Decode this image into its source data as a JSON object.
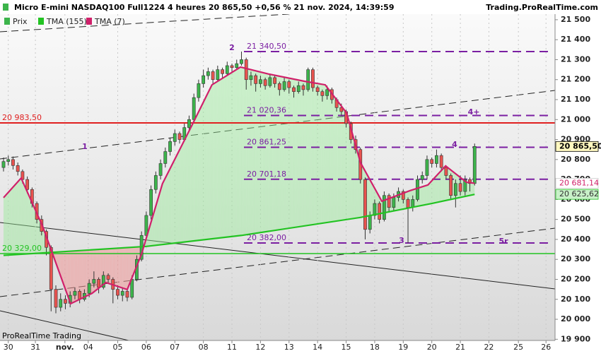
{
  "chart_data": {
    "type": "candlestick",
    "title": "Micro E-mini NASDAQ100 Full1224 4 heures 20 865,50 +0,56 % 21 nov. 2024, 14:39:59",
    "source": "Trading.ProRealTime.com",
    "footer": "ProRealTime Trading",
    "xlim": [
      -0.74,
      115.9
    ],
    "ylim": [
      19894,
      21528
    ],
    "xticks": [
      {
        "value": 1,
        "label": "30"
      },
      {
        "value": 6.7,
        "label": "31"
      },
      {
        "value": 12.9,
        "label": "nov."
      },
      {
        "value": 17.8,
        "label": "04"
      },
      {
        "value": 24,
        "label": "05"
      },
      {
        "value": 30,
        "label": "06"
      },
      {
        "value": 36,
        "label": "07"
      },
      {
        "value": 42,
        "label": "08"
      },
      {
        "value": 48,
        "label": "11"
      },
      {
        "value": 54,
        "label": "12"
      },
      {
        "value": 60,
        "label": "13"
      },
      {
        "value": 66,
        "label": "14"
      },
      {
        "value": 72,
        "label": "15"
      },
      {
        "value": 78,
        "label": "18"
      },
      {
        "value": 84,
        "label": "19"
      },
      {
        "value": 90,
        "label": "20"
      },
      {
        "value": 96,
        "label": "21"
      },
      {
        "value": 102,
        "label": "22"
      },
      {
        "value": 108.2,
        "label": "25"
      },
      {
        "value": 114,
        "label": "26"
      }
    ],
    "yticks": [
      {
        "value": 21500,
        "label": "21 500"
      },
      {
        "value": 21400,
        "label": "21 400"
      },
      {
        "value": 21300,
        "label": "21 300"
      },
      {
        "value": 21200,
        "label": "21 200"
      },
      {
        "value": 21100,
        "label": "21 100"
      },
      {
        "value": 21000,
        "label": "21 000"
      },
      {
        "value": 20900,
        "label": "20 900"
      },
      {
        "value": 20800,
        "label": "20 800"
      },
      {
        "value": 20700,
        "label": "20 700"
      },
      {
        "value": 20600,
        "label": "20 600"
      },
      {
        "value": 20500,
        "label": "20 500"
      },
      {
        "value": 20400,
        "label": "20 400"
      },
      {
        "value": 20300,
        "label": "20 300"
      },
      {
        "value": 20200,
        "label": "20 200"
      },
      {
        "value": 20100,
        "label": "20 100"
      },
      {
        "value": 20000,
        "label": "20 000"
      },
      {
        "value": 19900,
        "label": "19 900"
      }
    ],
    "series": [
      {
        "name": "Prix",
        "up_color": "#3cb44b",
        "down_color": "#e8534f",
        "open": [
          20760,
          20790,
          20800,
          20770,
          20740,
          20700,
          20650,
          20580,
          20500,
          20440,
          20360,
          20150,
          20060,
          20100,
          20080,
          20120,
          20140,
          20100,
          20130,
          20180,
          20200,
          20160,
          20220,
          20200,
          20150,
          20120,
          20140,
          20110,
          20200,
          20300,
          20420,
          20520,
          20650,
          20720,
          20780,
          20840,
          20890,
          20930,
          20900,
          20960,
          21000,
          21110,
          21180,
          21220,
          21240,
          21200,
          21250,
          21230,
          21270,
          21260,
          21280,
          21300,
          21200,
          21220,
          21180,
          21200,
          21170,
          21210,
          21180,
          21150,
          21190,
          21160,
          21140,
          21170,
          21150,
          21250,
          21160,
          21140,
          21120,
          21150,
          21100,
          21060,
          21040,
          20980,
          20900,
          20850,
          20700,
          20450,
          20520,
          20580,
          20500,
          20620,
          20560,
          20610,
          20640,
          20600,
          20560,
          20600,
          20700,
          20720,
          20800,
          20780,
          20820,
          20760,
          20720,
          20620,
          20680,
          20640,
          20700,
          20680
        ],
        "high": [
          20810,
          20820,
          20815,
          20785,
          20750,
          20715,
          20660,
          20590,
          20520,
          20450,
          20370,
          20170,
          20130,
          20120,
          20140,
          20160,
          20150,
          20150,
          20200,
          20240,
          20210,
          20240,
          20230,
          20210,
          20170,
          20160,
          20150,
          20220,
          20320,
          20440,
          20540,
          20670,
          20740,
          20800,
          20860,
          20910,
          20950,
          20940,
          20980,
          21020,
          21130,
          21200,
          21250,
          21260,
          21250,
          21270,
          21260,
          21290,
          21280,
          21300,
          21340.5,
          21310,
          21240,
          21230,
          21220,
          21210,
          21230,
          21220,
          21190,
          21210,
          21200,
          21170,
          21190,
          21180,
          21260,
          21260,
          21170,
          21150,
          21170,
          21160,
          21110,
          21080,
          21050,
          20990,
          20920,
          20860,
          20710,
          20540,
          20600,
          20590,
          20640,
          20630,
          20630,
          20660,
          20650,
          20610,
          20620,
          20720,
          20740,
          20820,
          20810,
          20850,
          20830,
          20770,
          20730,
          20700,
          20720,
          20720,
          20710,
          20880
        ],
        "low": [
          20740,
          20770,
          20750,
          20720,
          20680,
          20630,
          20560,
          20480,
          20420,
          20320,
          20040,
          20030,
          20040,
          20050,
          20060,
          20100,
          20080,
          20090,
          20110,
          20160,
          20130,
          20150,
          20180,
          20080,
          20100,
          20090,
          20090,
          20100,
          20190,
          20290,
          20400,
          20500,
          20630,
          20700,
          20760,
          20820,
          20870,
          20880,
          20890,
          20940,
          20990,
          21090,
          21160,
          21200,
          21180,
          21190,
          21210,
          21220,
          21240,
          21250,
          21270,
          21150,
          21170,
          21140,
          21160,
          21150,
          21160,
          21160,
          21120,
          21140,
          21130,
          21110,
          21130,
          21120,
          21140,
          21140,
          21120,
          21090,
          21100,
          21080,
          21040,
          21020,
          20960,
          20880,
          20830,
          20680,
          20400,
          20430,
          20500,
          20480,
          20490,
          20540,
          20540,
          20590,
          20580,
          20382,
          20540,
          20590,
          20680,
          20700,
          20760,
          20760,
          20740,
          20700,
          20600,
          20560,
          20620,
          20620,
          20640,
          20670
        ],
        "close": [
          20790,
          20800,
          20770,
          20740,
          20700,
          20650,
          20580,
          20500,
          20440,
          20360,
          20150,
          20060,
          20100,
          20080,
          20120,
          20140,
          20100,
          20130,
          20180,
          20200,
          20160,
          20220,
          20200,
          20150,
          20120,
          20140,
          20110,
          20200,
          20300,
          20420,
          20520,
          20650,
          20720,
          20780,
          20840,
          20890,
          20930,
          20900,
          20960,
          21000,
          21110,
          21180,
          21220,
          21240,
          21200,
          21250,
          21230,
          21270,
          21260,
          21280,
          21300,
          21200,
          21220,
          21180,
          21200,
          21170,
          21210,
          21180,
          21150,
          21190,
          21160,
          21140,
          21170,
          21150,
          21250,
          21160,
          21140,
          21120,
          21150,
          21100,
          21060,
          21040,
          20980,
          20900,
          20850,
          20700,
          20450,
          20520,
          20580,
          20500,
          20620,
          20560,
          20610,
          20640,
          20600,
          20560,
          20600,
          20700,
          20720,
          20800,
          20780,
          20820,
          20760,
          20720,
          20620,
          20680,
          20640,
          20700,
          20680,
          20865.5
        ]
      },
      {
        "name": "TMA (155)",
        "color": "#22c322",
        "x": [
          0,
          30,
          50,
          75,
          90,
          99
        ],
        "values": [
          20320,
          20365,
          20420,
          20510,
          20580,
          20625.62
        ]
      },
      {
        "name": "TMA (7)",
        "color": "#d0206a",
        "x": [
          0,
          3.7,
          8.2,
          14.1,
          18.6,
          21.5,
          26,
          29,
          33.4,
          39.4,
          43.8,
          49.8,
          55.7,
          63.2,
          67.6,
          72.1,
          75,
          79.5,
          85.4,
          89.2,
          92.9,
          97.3,
          99
        ],
        "values": [
          20609,
          20707,
          20467,
          20078,
          20130,
          20184,
          20149,
          20326,
          20679,
          20962,
          21174,
          21263,
          21228,
          21192,
          21174,
          21033,
          20785,
          20591,
          20644,
          20673,
          20768,
          20686,
          20681.14
        ]
      }
    ],
    "hlines": [
      {
        "value": 20983.5,
        "label": "20 983,50",
        "color": "#e02020"
      },
      {
        "value": 20329,
        "label": "20 329,00",
        "color": "#22c322"
      }
    ],
    "levels": [
      {
        "value": 21340.5,
        "label": "21 340,50"
      },
      {
        "value": 21020.36,
        "label": "21 020,36"
      },
      {
        "value": 20861.25,
        "label": "20 861,25"
      },
      {
        "value": 20701.18,
        "label": "20 701,18"
      },
      {
        "value": 20382,
        "label": "20 382,00"
      }
    ],
    "level_color": "#7b1fa2",
    "price_tags": [
      {
        "value": 20865.5,
        "label": "20 865,50"
      },
      {
        "value": 20681.14,
        "label": "20 681,14"
      },
      {
        "value": 20625.62,
        "label": "20 625,62"
      }
    ],
    "annotations": [
      "2",
      "1",
      "3",
      "4",
      "4+",
      "5r"
    ]
  }
}
